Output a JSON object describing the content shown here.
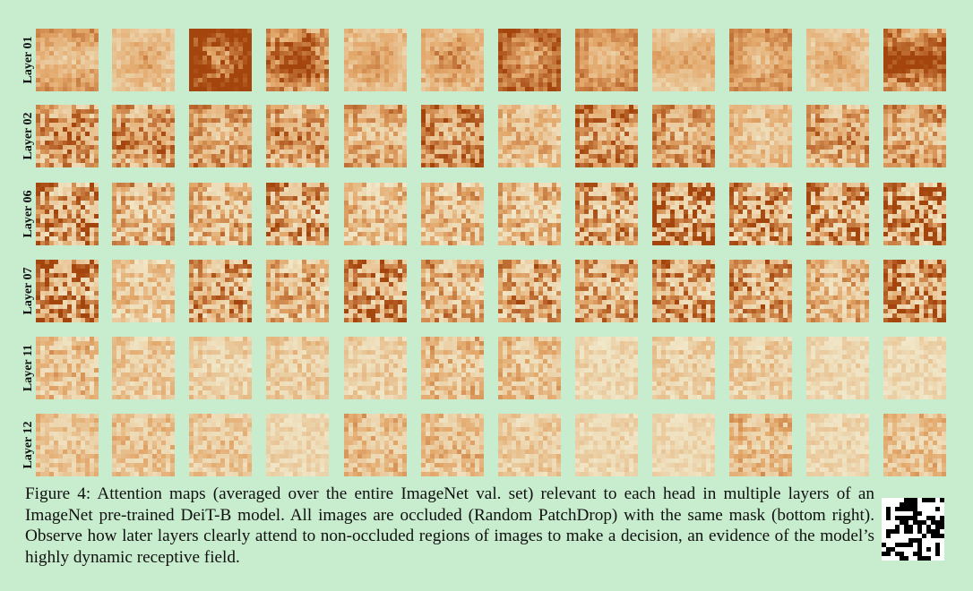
{
  "figure": {
    "row_labels": [
      "Layer 01",
      "Layer 02",
      "Layer 06",
      "Layer 07",
      "Layer 11",
      "Layer 12"
    ],
    "heads_per_layer": 12,
    "patch_grid": 14,
    "colormap": {
      "low": "#f1ebce",
      "mid": "#e3a76a",
      "high": "#a4450d"
    }
  },
  "caption": {
    "text": "Figure 4: Attention maps (averaged over the entire ImageNet val. set) relevant to each head in multiple layers of an ImageNet pre-trained DeiT-B model. All images are occluded (Random PatchDrop) with the same mask (bottom right). Observe how later layers clearly attend to non-occluded regions of images to make a decision, an evidence of the model’s highly dynamic receptive field."
  },
  "mask": {
    "visible_color": "#ffffff",
    "dropped_color": "#000000"
  }
}
